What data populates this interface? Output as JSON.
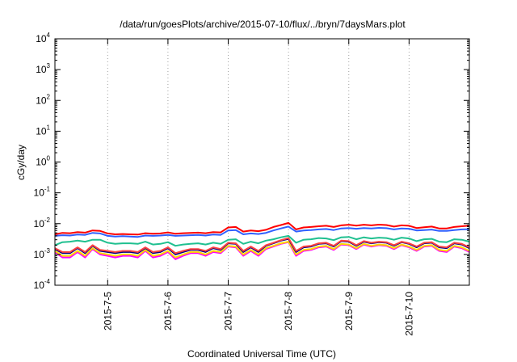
{
  "chart_data": {
    "type": "line",
    "title": "/data/run/goesPlots/archive/2015-07-10/flux/../bryn/7daysMars.plot",
    "xlabel": "Coordinated Universal Time (UTC)",
    "ylabel": "cGy/day",
    "yscale": "log",
    "ylim": [
      0.0001,
      10000
    ],
    "xlim": [
      "2015-07-04T03:00",
      "2015-07-10T24:00"
    ],
    "y_ticks": [
      {
        "base": "10",
        "exp": "-4",
        "value": 0.0001
      },
      {
        "base": "10",
        "exp": "-3",
        "value": 0.001
      },
      {
        "base": "10",
        "exp": "-2",
        "value": 0.01
      },
      {
        "base": "10",
        "exp": "-1",
        "value": 0.1
      },
      {
        "base": "10",
        "exp": "0",
        "value": 1
      },
      {
        "base": "10",
        "exp": "1",
        "value": 10
      },
      {
        "base": "10",
        "exp": "2",
        "value": 100
      },
      {
        "base": "10",
        "exp": "3",
        "value": 1000
      },
      {
        "base": "10",
        "exp": "4",
        "value": 10000
      }
    ],
    "x_ticks": [
      {
        "label": "2015-7-5",
        "value": "2015-07-05T00:00"
      },
      {
        "label": "2015-7-6",
        "value": "2015-07-06T00:00"
      },
      {
        "label": "2015-7-7",
        "value": "2015-07-07T00:00"
      },
      {
        "label": "2015-7-8",
        "value": "2015-07-08T00:00"
      },
      {
        "label": "2015-7-9",
        "value": "2015-07-09T00:00"
      },
      {
        "label": "2015-7-10",
        "value": "2015-07-10T00:00"
      }
    ],
    "grid": true,
    "legend": "none",
    "x": [
      "2015-07-04T03:00",
      "2015-07-04T06:00",
      "2015-07-04T09:00",
      "2015-07-04T12:00",
      "2015-07-04T15:00",
      "2015-07-04T18:00",
      "2015-07-04T21:00",
      "2015-07-05T00:00",
      "2015-07-05T03:00",
      "2015-07-05T06:00",
      "2015-07-05T09:00",
      "2015-07-05T12:00",
      "2015-07-05T15:00",
      "2015-07-05T18:00",
      "2015-07-05T21:00",
      "2015-07-06T00:00",
      "2015-07-06T03:00",
      "2015-07-06T06:00",
      "2015-07-06T09:00",
      "2015-07-06T12:00",
      "2015-07-06T15:00",
      "2015-07-06T18:00",
      "2015-07-06T21:00",
      "2015-07-07T00:00",
      "2015-07-07T03:00",
      "2015-07-07T06:00",
      "2015-07-07T09:00",
      "2015-07-07T12:00",
      "2015-07-07T15:00",
      "2015-07-07T18:00",
      "2015-07-07T21:00",
      "2015-07-08T00:00",
      "2015-07-08T03:00",
      "2015-07-08T06:00",
      "2015-07-08T09:00",
      "2015-07-08T12:00",
      "2015-07-08T15:00",
      "2015-07-08T18:00",
      "2015-07-08T21:00",
      "2015-07-09T00:00",
      "2015-07-09T03:00",
      "2015-07-09T06:00",
      "2015-07-09T09:00",
      "2015-07-09T12:00",
      "2015-07-09T15:00",
      "2015-07-09T18:00",
      "2015-07-09T21:00",
      "2015-07-10T00:00",
      "2015-07-10T03:00",
      "2015-07-10T06:00",
      "2015-07-10T09:00",
      "2015-07-10T12:00",
      "2015-07-10T15:00",
      "2015-07-10T18:00",
      "2015-07-10T21:00",
      "2015-07-10T24:00"
    ],
    "series": [
      {
        "color": "#ff00ff",
        "values": [
          0.0012,
          0.0008,
          0.0008,
          0.0012,
          0.0008,
          0.0015,
          0.001,
          0.0009,
          0.0008,
          0.0009,
          0.0009,
          0.0008,
          0.0013,
          0.0008,
          0.0009,
          0.0012,
          0.0007,
          0.0009,
          0.0011,
          0.0011,
          0.0009,
          0.0012,
          0.0011,
          0.0018,
          0.0017,
          0.0009,
          0.0013,
          0.0009,
          0.0015,
          0.0018,
          0.0022,
          0.0025,
          0.0009,
          0.0013,
          0.0014,
          0.0017,
          0.0018,
          0.0014,
          0.0021,
          0.002,
          0.0015,
          0.0021,
          0.0018,
          0.002,
          0.0019,
          0.0015,
          0.002,
          0.0017,
          0.0013,
          0.0018,
          0.0019,
          0.0013,
          0.0012,
          0.0018,
          0.0016,
          0.0012
        ]
      },
      {
        "color": "#ffd700",
        "values": [
          0.0013,
          0.0009,
          0.0009,
          0.0013,
          0.0009,
          0.0016,
          0.0011,
          0.001,
          0.0009,
          0.001,
          0.001,
          0.0009,
          0.0014,
          0.0009,
          0.001,
          0.0013,
          0.0008,
          0.001,
          0.0012,
          0.0012,
          0.001,
          0.0013,
          0.0012,
          0.0019,
          0.0018,
          0.001,
          0.0014,
          0.001,
          0.0016,
          0.0019,
          0.0023,
          0.0026,
          0.001,
          0.0014,
          0.0015,
          0.0018,
          0.0019,
          0.0015,
          0.0022,
          0.0021,
          0.0016,
          0.0022,
          0.0019,
          0.0021,
          0.002,
          0.0016,
          0.0021,
          0.0018,
          0.0014,
          0.0019,
          0.002,
          0.0014,
          0.0013,
          0.0019,
          0.0017,
          0.0013
        ]
      },
      {
        "color": "#000080",
        "values": [
          0.0015,
          0.0011,
          0.0011,
          0.0016,
          0.0011,
          0.0019,
          0.0013,
          0.0012,
          0.0011,
          0.0012,
          0.0012,
          0.0011,
          0.0016,
          0.0011,
          0.0012,
          0.0016,
          0.001,
          0.0012,
          0.0014,
          0.0014,
          0.0012,
          0.0016,
          0.0014,
          0.0023,
          0.0022,
          0.0012,
          0.0017,
          0.0012,
          0.0019,
          0.0023,
          0.0028,
          0.0032,
          0.0012,
          0.0017,
          0.0018,
          0.0022,
          0.0023,
          0.0018,
          0.0027,
          0.0026,
          0.0019,
          0.0026,
          0.0023,
          0.0025,
          0.0024,
          0.0019,
          0.0025,
          0.0022,
          0.0017,
          0.0023,
          0.0024,
          0.0017,
          0.0016,
          0.0023,
          0.0021,
          0.0016
        ]
      },
      {
        "color": "#ff4040",
        "values": [
          0.0016,
          0.0012,
          0.0012,
          0.0017,
          0.0012,
          0.002,
          0.0014,
          0.0013,
          0.0012,
          0.0013,
          0.0013,
          0.0012,
          0.0017,
          0.0012,
          0.0013,
          0.0017,
          0.0011,
          0.0013,
          0.0015,
          0.0015,
          0.0013,
          0.0017,
          0.0015,
          0.0024,
          0.0023,
          0.0013,
          0.0018,
          0.0013,
          0.002,
          0.0024,
          0.0029,
          0.0034,
          0.0013,
          0.0018,
          0.0019,
          0.0023,
          0.0024,
          0.0019,
          0.0028,
          0.0027,
          0.002,
          0.0027,
          0.0024,
          0.0026,
          0.0025,
          0.002,
          0.0026,
          0.0023,
          0.0018,
          0.0024,
          0.0025,
          0.0018,
          0.0017,
          0.0024,
          0.0022,
          0.0017
        ]
      },
      {
        "color": "#20c090",
        "values": [
          0.002,
          0.0025,
          0.0026,
          0.0028,
          0.0026,
          0.003,
          0.003,
          0.0024,
          0.0022,
          0.0023,
          0.0023,
          0.0022,
          0.0026,
          0.0021,
          0.0022,
          0.0025,
          0.0019,
          0.0021,
          0.0022,
          0.0023,
          0.0021,
          0.0024,
          0.0022,
          0.003,
          0.0031,
          0.0022,
          0.0026,
          0.0023,
          0.0028,
          0.0031,
          0.0036,
          0.004,
          0.0024,
          0.003,
          0.0031,
          0.0034,
          0.0033,
          0.0029,
          0.0036,
          0.0037,
          0.0031,
          0.0036,
          0.0033,
          0.0035,
          0.0034,
          0.003,
          0.0035,
          0.0033,
          0.0027,
          0.0031,
          0.0032,
          0.0026,
          0.0025,
          0.0031,
          0.003,
          0.0026
        ]
      },
      {
        "color": "#3060ff",
        "values": [
          0.004,
          0.0042,
          0.0041,
          0.0044,
          0.0043,
          0.005,
          0.0048,
          0.004,
          0.0038,
          0.0039,
          0.0038,
          0.0037,
          0.0041,
          0.004,
          0.0041,
          0.0043,
          0.004,
          0.0041,
          0.0042,
          0.0043,
          0.0041,
          0.0044,
          0.0043,
          0.006,
          0.0062,
          0.0045,
          0.0048,
          0.0046,
          0.005,
          0.006,
          0.007,
          0.008,
          0.0055,
          0.006,
          0.0062,
          0.0065,
          0.0067,
          0.0062,
          0.007,
          0.0072,
          0.0068,
          0.0072,
          0.007,
          0.0073,
          0.0071,
          0.0065,
          0.007,
          0.0068,
          0.006,
          0.0062,
          0.0064,
          0.0058,
          0.0058,
          0.0062,
          0.0065,
          0.0066
        ]
      },
      {
        "color": "#ff0000",
        "values": [
          0.0045,
          0.005,
          0.0049,
          0.0053,
          0.0051,
          0.006,
          0.0058,
          0.0048,
          0.0045,
          0.0046,
          0.0045,
          0.0044,
          0.0049,
          0.0047,
          0.0048,
          0.0052,
          0.0047,
          0.0049,
          0.005,
          0.0051,
          0.0049,
          0.0053,
          0.0052,
          0.0075,
          0.0078,
          0.0055,
          0.006,
          0.0057,
          0.0063,
          0.0078,
          0.009,
          0.0105,
          0.0065,
          0.0075,
          0.0078,
          0.0082,
          0.0085,
          0.0078,
          0.0088,
          0.0092,
          0.0086,
          0.0092,
          0.0088,
          0.0093,
          0.009,
          0.008,
          0.0088,
          0.0085,
          0.0072,
          0.0076,
          0.008,
          0.007,
          0.007,
          0.0078,
          0.0082,
          0.0086
        ]
      }
    ]
  }
}
